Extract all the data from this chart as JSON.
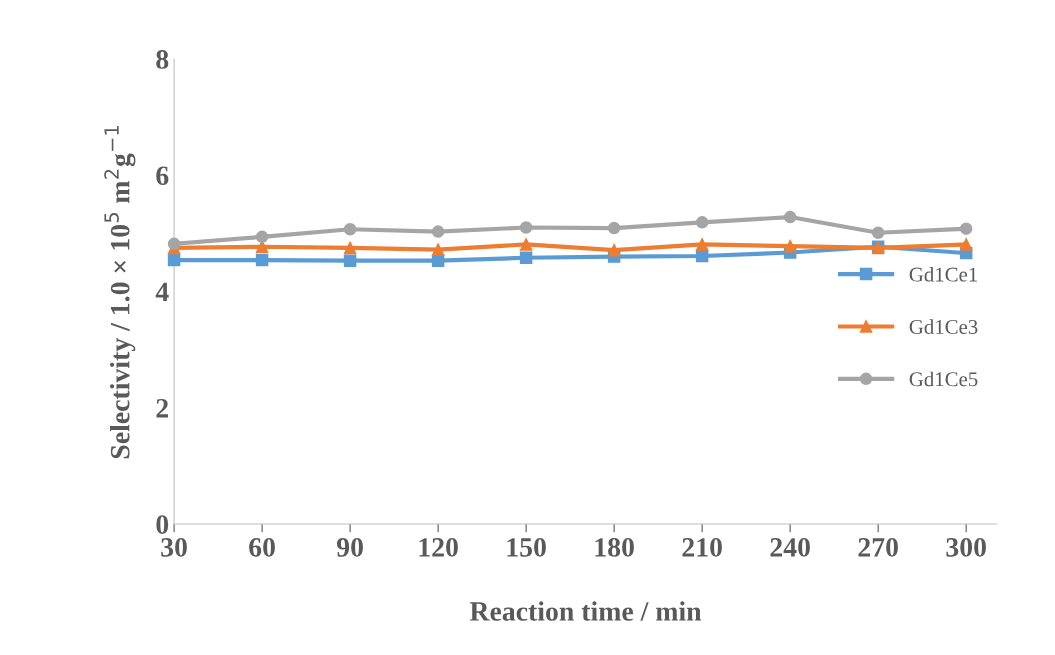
{
  "chart_data": {
    "type": "line",
    "xlabel": "Reaction time / min",
    "ylabel": "Selectivity / 1.0 × 10$^{5}$ m$^{2}$g$^{−1}$",
    "categories": [
      "30",
      "60",
      "90",
      "120",
      "150",
      "180",
      "210",
      "240",
      "270",
      "300"
    ],
    "series": [
      {
        "name": "Gd1Ce1",
        "color": "#5b9bd5",
        "marker": "square",
        "values": [
          4.54,
          4.54,
          4.53,
          4.53,
          4.58,
          4.6,
          4.61,
          4.67,
          4.77,
          4.66
        ]
      },
      {
        "name": "Gd1Ce3",
        "color": "#ed7d31",
        "marker": "triangle",
        "values": [
          4.75,
          4.77,
          4.75,
          4.72,
          4.81,
          4.71,
          4.81,
          4.78,
          4.75,
          4.81
        ]
      },
      {
        "name": "Gd1Ce5",
        "color": "#a5a5a5",
        "marker": "circle",
        "values": [
          4.82,
          4.94,
          5.07,
          5.03,
          5.1,
          5.09,
          5.19,
          5.28,
          5.01,
          5.08
        ]
      }
    ],
    "ylim": [
      0,
      8
    ],
    "yticks": [
      0,
      2,
      4,
      6,
      8
    ],
    "grid": false,
    "legend": "right"
  }
}
